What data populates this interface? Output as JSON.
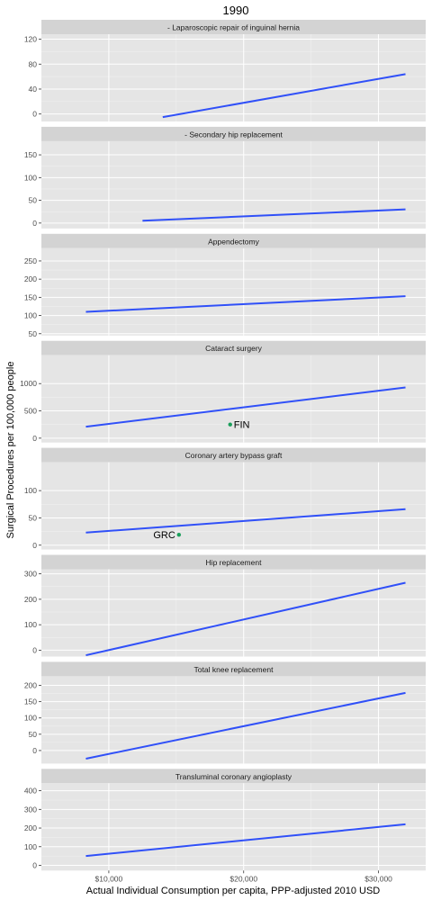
{
  "chart_data": {
    "type": "line",
    "title": "1990",
    "xlabel": "Actual Individual Consumption per capita, PPP-adjusted 2010 USD",
    "ylabel": "Surgical Procedures per 100,000 people",
    "xlim": [
      5000,
      33500
    ],
    "x_ticks": [
      10000,
      20000,
      30000
    ],
    "x_tick_labels": [
      "$10,000",
      "$20,000",
      "$30,000"
    ],
    "line_color": "#3050f8",
    "point_color": "#1a9e5a",
    "panel_bg": "#e5e5e5",
    "strip_bg": "#d3d3d3",
    "facets": [
      {
        "name": "- Laparoscopic repair of inguinal hernia",
        "ylim": [
          -12,
          128
        ],
        "y_ticks": [
          0,
          40,
          80,
          120
        ],
        "trend": {
          "x": [
            14000,
            32000
          ],
          "y": [
            -5,
            64
          ]
        },
        "points": []
      },
      {
        "name": "- Secondary hip replacement",
        "ylim": [
          -12,
          180
        ],
        "y_ticks": [
          0,
          50,
          100,
          150
        ],
        "trend": {
          "x": [
            12500,
            32000
          ],
          "y": [
            5,
            30
          ]
        },
        "points": []
      },
      {
        "name": "Appendectomy",
        "ylim": [
          45,
          285
        ],
        "y_ticks": [
          50,
          100,
          150,
          200,
          250
        ],
        "trend": {
          "x": [
            8300,
            32000
          ],
          "y": [
            110,
            153
          ]
        },
        "points": []
      },
      {
        "name": "Cataract surgery",
        "ylim": [
          -80,
          1520
        ],
        "y_ticks": [
          0,
          500,
          1000
        ],
        "trend": {
          "x": [
            8300,
            32000
          ],
          "y": [
            210,
            930
          ]
        },
        "points": [
          {
            "label": "FIN",
            "x": 19000,
            "y": 250
          }
        ]
      },
      {
        "name": "Coronary artery bypass graft",
        "ylim": [
          -8,
          152
        ],
        "y_ticks": [
          0,
          50,
          100
        ],
        "trend": {
          "x": [
            8300,
            32000
          ],
          "y": [
            23,
            66
          ]
        },
        "points": [
          {
            "label": "GRC",
            "x": 15200,
            "y": 19
          }
        ]
      },
      {
        "name": "Hip replacement",
        "ylim": [
          -25,
          318
        ],
        "y_ticks": [
          0,
          100,
          200,
          300
        ],
        "trend": {
          "x": [
            8300,
            32000
          ],
          "y": [
            -20,
            265
          ]
        },
        "points": []
      },
      {
        "name": "Total knee replacement",
        "ylim": [
          -40,
          228
        ],
        "y_ticks": [
          0,
          50,
          100,
          150,
          200
        ],
        "trend": {
          "x": [
            8300,
            32000
          ],
          "y": [
            -25,
            177
          ]
        },
        "points": []
      },
      {
        "name": "Transluminal coronary angioplasty",
        "ylim": [
          -28,
          440
        ],
        "y_ticks": [
          0,
          100,
          200,
          300,
          400
        ],
        "trend": {
          "x": [
            8300,
            32000
          ],
          "y": [
            50,
            220
          ]
        },
        "points": []
      }
    ]
  }
}
